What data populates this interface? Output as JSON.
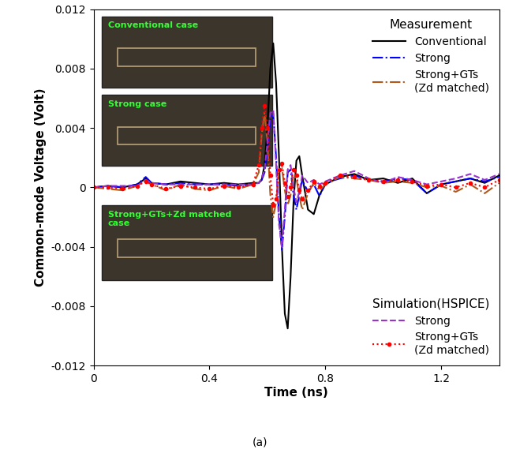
{
  "chart_data": {
    "type": "line",
    "x_label": "Time (ns)",
    "y_label": "Common-mode Voltage (Volt)",
    "caption": "(a)",
    "insets": [
      "Conventional case",
      "Strong case",
      "Strong+GTs+Zd matched\ncase"
    ],
    "xlim": [
      0,
      1.4
    ],
    "xticks": [
      0,
      0.4,
      0.8,
      1.2
    ],
    "ylim": [
      -0.012,
      0.012
    ],
    "yticks": [
      -0.012,
      -0.008,
      -0.004,
      0,
      0.004,
      0.008,
      0.012
    ],
    "grid": false,
    "legend_groups": [
      {
        "title": "Measurement",
        "legend": "upper right"
      },
      {
        "title": "Simulation(HSPICE)",
        "legend": "lower right"
      }
    ],
    "x": [
      0,
      0.05,
      0.1,
      0.15,
      0.18,
      0.2,
      0.25,
      0.3,
      0.35,
      0.4,
      0.45,
      0.5,
      0.55,
      0.57,
      0.58,
      0.59,
      0.6,
      0.61,
      0.62,
      0.63,
      0.64,
      0.65,
      0.66,
      0.67,
      0.68,
      0.69,
      0.7,
      0.71,
      0.72,
      0.74,
      0.76,
      0.78,
      0.8,
      0.85,
      0.9,
      0.95,
      1.0,
      1.05,
      1.1,
      1.15,
      1.2,
      1.25,
      1.3,
      1.35,
      1.4
    ],
    "series": [
      {
        "name": "Conventional",
        "group": "Measurement",
        "color": "#000000",
        "line_style": "solid",
        "values": [
          0,
          0.0001,
          0,
          0.0002,
          0.0006,
          0.0003,
          0.0002,
          0.0004,
          0.0003,
          0.0002,
          0.0003,
          0.0002,
          0.0003,
          0.0003,
          0.0005,
          0.0015,
          0.004,
          0.008,
          0.0097,
          0.007,
          0.002,
          -0.004,
          -0.0085,
          -0.0095,
          -0.006,
          -0.001,
          0.0018,
          0.0021,
          0.0008,
          -0.0015,
          -0.0018,
          -0.0005,
          0.0002,
          0.0007,
          0.0009,
          0.0005,
          0.0006,
          0.0003,
          0.0006,
          -0.0004,
          0.0002,
          0.0004,
          0.0006,
          0.0003,
          0.0008
        ]
      },
      {
        "name": "Strong",
        "group": "Measurement",
        "color": "#0000ff",
        "line_style": "dashdot",
        "values": [
          0,
          0.0001,
          0,
          0.0002,
          0.0007,
          0.0003,
          0.0002,
          0.0003,
          0.0002,
          0.0002,
          0.0002,
          0.0001,
          0.0002,
          0.0003,
          0.0005,
          0.001,
          0.0025,
          0.0045,
          0.005,
          0.002,
          -0.002,
          -0.0042,
          -0.002,
          0.001,
          0.0012,
          -0.0005,
          -0.0015,
          -0.0005,
          0.0005,
          -0.0003,
          0.0002,
          -0.0006,
          0.0003,
          0.0006,
          0.0008,
          0.0005,
          0.0004,
          0.0006,
          0.0005,
          -0.0004,
          0.0002,
          0.0004,
          0.0006,
          0.0004,
          0.0007
        ]
      },
      {
        "name": "Strong+GTs\n(Zd matched)",
        "group": "Measurement",
        "color": "#b05a1e",
        "line_style": "dashdot",
        "values": [
          0,
          -0.0001,
          -0.0002,
          0.0001,
          0.0005,
          0.0002,
          -0.0002,
          0.0002,
          -0.0001,
          -0.0002,
          0.0001,
          -0.0001,
          0.0002,
          0.001,
          0.0035,
          0.005,
          0.003,
          -0.0005,
          -0.002,
          -0.001,
          0.0012,
          0.0013,
          -0.0002,
          -0.0012,
          -0.0005,
          0.0008,
          0.0006,
          -0.0006,
          -0.0015,
          -0.0004,
          0.0003,
          -0.0002,
          0.0002,
          0.0007,
          0.0006,
          0.0005,
          0.0003,
          0.0004,
          0.0003,
          0,
          0.0001,
          -0.0003,
          0.0002,
          -0.0004,
          0.0003
        ]
      },
      {
        "name": "Strong",
        "group": "Simulation(HSPICE)",
        "color": "#9933cc",
        "line_style": "dashed",
        "values": [
          0,
          0.0001,
          0.0001,
          0.0001,
          0.0005,
          0.0003,
          0.0002,
          0.0002,
          0.0002,
          0.0002,
          0.0002,
          0.0002,
          0.0002,
          0.0003,
          0.0006,
          0.0012,
          0.003,
          0.005,
          0.0052,
          0.0015,
          -0.0025,
          -0.004,
          -0.0015,
          0.0012,
          0.0015,
          0,
          -0.001,
          -0.0003,
          0.0008,
          0.0003,
          0.0005,
          0.0002,
          0.0004,
          0.0008,
          0.0011,
          0.0006,
          0.0003,
          0.0007,
          0.0005,
          0.0002,
          0.0004,
          0.0006,
          0.0009,
          0.0005,
          0.0009
        ]
      },
      {
        "name": "Strong+GTs\n(Zd matched)",
        "group": "Simulation(HSPICE)",
        "color": "#ff0000",
        "line_style": "dotted",
        "marker": "o",
        "values": [
          0,
          0,
          -0.0001,
          0.0001,
          0.0004,
          0.0002,
          -0.0001,
          0.0001,
          0,
          -0.0001,
          0.0001,
          0,
          0.0002,
          0.0015,
          0.004,
          0.0055,
          0.004,
          0.0008,
          -0.0012,
          -0.0008,
          0.0012,
          0.0016,
          0.0003,
          -0.0006,
          0,
          0.0012,
          0.0008,
          -0.0002,
          -0.0008,
          -0.0002,
          0.0004,
          0.0001,
          0.0003,
          0.0008,
          0.0007,
          0.0005,
          0.0004,
          0.0005,
          0.0004,
          0.0001,
          0.0002,
          0,
          0.0003,
          0,
          0.0005
        ]
      }
    ]
  }
}
